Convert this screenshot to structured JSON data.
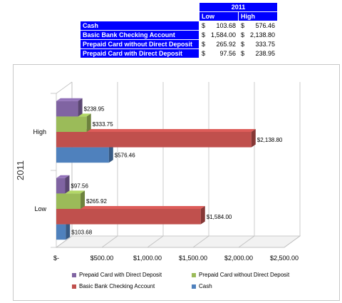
{
  "table": {
    "year": "2011",
    "col_low": "Low",
    "col_high": "High",
    "currency": "$",
    "rows": [
      {
        "label": "Cash",
        "low": "103.68",
        "high": "576.46"
      },
      {
        "label": "Basic Bank Checking Account",
        "low": "1,584.00",
        "high": "2,138.80"
      },
      {
        "label": "Prepaid Card without Direct Deposit",
        "low": "265.92",
        "high": "333.75"
      },
      {
        "label": "Prepaid Card with Direct Deposit",
        "low": "97.56",
        "high": "238.95"
      }
    ]
  },
  "chart_data": {
    "type": "bar",
    "orientation": "horizontal",
    "style": "3d-clustered",
    "axis_title_left": "2011",
    "categories": [
      "Low",
      "High"
    ],
    "xlim": [
      0,
      2500
    ],
    "x_ticks": [
      "$-",
      "$500.00",
      "$1,000.00",
      "$1,500.00",
      "$2,000.00",
      "$2,500.00"
    ],
    "grid": true,
    "legend_position": "bottom",
    "series": [
      {
        "name": "Cash",
        "color": "#4f81bd",
        "values": [
          103.68,
          576.46
        ],
        "labels": [
          "$103.68",
          "$576.46"
        ]
      },
      {
        "name": "Basic Bank Checking Account",
        "color": "#c0504d",
        "values": [
          1584.0,
          2138.8
        ],
        "labels": [
          "$1,584.00",
          "$2,138.80"
        ]
      },
      {
        "name": "Prepaid Card without Direct Deposit",
        "color": "#9bbb59",
        "values": [
          265.92,
          333.75
        ],
        "labels": [
          "$265.92",
          "$333.75"
        ]
      },
      {
        "name": "Prepaid Card with Direct Deposit",
        "color": "#8064a2",
        "values": [
          97.56,
          238.95
        ],
        "labels": [
          "$97.56",
          "$238.95"
        ]
      }
    ],
    "legend": [
      "Prepaid Card with Direct Deposit",
      "Prepaid Card without Direct Deposit",
      "Basic Bank Checking Account",
      "Cash"
    ]
  }
}
